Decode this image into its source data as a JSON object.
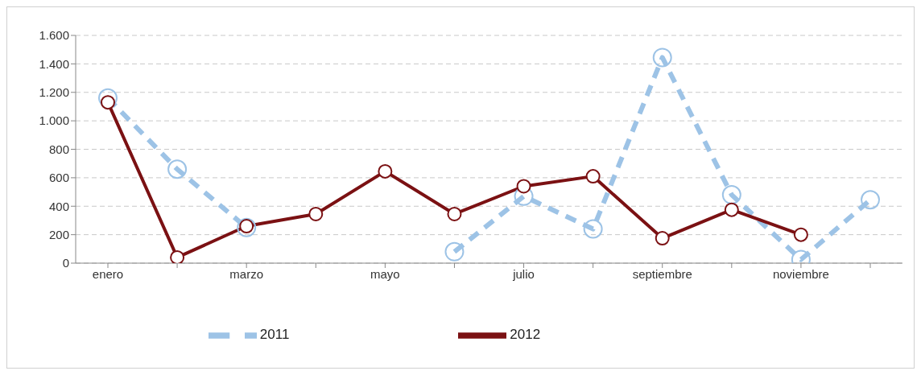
{
  "chart_data": {
    "type": "line",
    "categories": [
      "enero",
      null,
      "marzo",
      null,
      "mayo",
      null,
      "julio",
      null,
      "septiembre",
      null,
      "noviembre",
      null
    ],
    "series": [
      {
        "name": "2011",
        "color": "#9dc3e6",
        "line_style": "dashed",
        "values": [
          1160,
          660,
          250,
          null,
          null,
          80,
          470,
          240,
          1445,
          480,
          25,
          445
        ]
      },
      {
        "name": "2012",
        "color": "#7b1113",
        "line_style": "solid",
        "values": [
          1130,
          40,
          260,
          345,
          645,
          345,
          540,
          610,
          175,
          375,
          200,
          null
        ]
      }
    ],
    "ylim": [
      0,
      1600
    ],
    "yticks": [
      0,
      200,
      400,
      600,
      800,
      {
        "value": 1000,
        "label": "1.000"
      },
      {
        "value": 1200,
        "label": "1.200"
      },
      {
        "value": 1400,
        "label": "1.400"
      },
      {
        "value": 1600,
        "label": "1.600"
      }
    ],
    "grid": "y",
    "legend": "bottom",
    "marker": "circle"
  }
}
